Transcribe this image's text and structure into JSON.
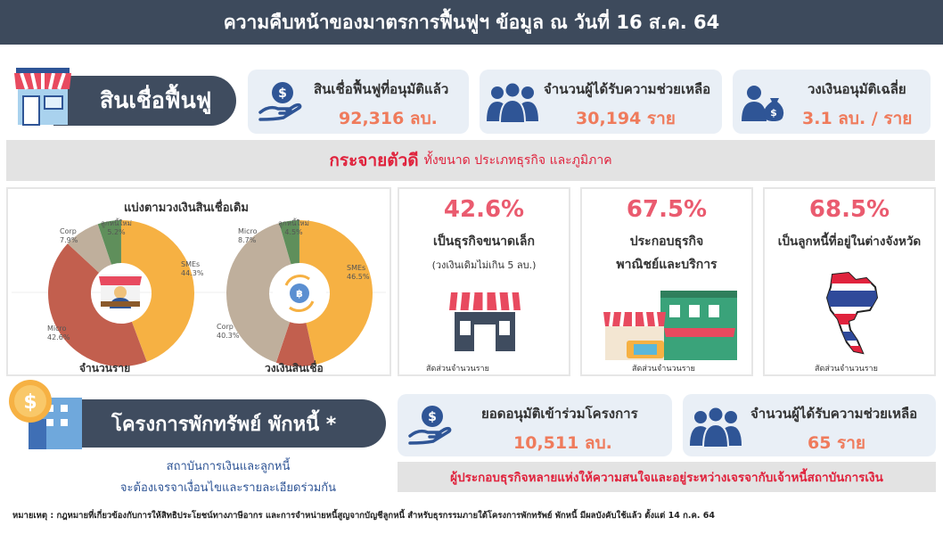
{
  "header": {
    "title": "ความคืบหน้าของมาตรการฟื้นฟูฯ ข้อมูล ณ วันที่ 16 ส.ค. 64"
  },
  "loan_section": {
    "title": "สินเชื่อฟื้นฟู",
    "stats": [
      {
        "title": "สินเชื่อฟื้นฟูที่อนุมัติแล้ว",
        "value": "92,316 ลบ.",
        "icon": "money-hand-icon"
      },
      {
        "title": "จำนวนผู้ได้รับความช่วยเหลือ",
        "value": "30,194 ราย",
        "icon": "people-icon"
      },
      {
        "title": "วงเงินอนุมัติเฉลี่ย",
        "value": "3.1 ลบ. / ราย",
        "icon": "person-money-icon"
      }
    ]
  },
  "distribution_banner": {
    "strong": "กระจายตัวดี",
    "rest": "ทั้งขนาด ประเภทธุรกิจ และภูมิภาค"
  },
  "donut_panel": {
    "title": "แบ่งตามวงเงินสินเชื่อเดิม",
    "colors": {
      "smes": "#f6b143",
      "micro": "#c25f4e",
      "corp": "#bfaf9c",
      "new": "#5f8f5b"
    },
    "count": {
      "caption": "จำนวนราย",
      "labels": {
        "smes": [
          "SMEs",
          "44.3%"
        ],
        "micro": [
          "Micro",
          "42.6%"
        ],
        "corp": [
          "Corp",
          "7.9%"
        ],
        "new": [
          "ลูกหนี้ใหม่",
          "5.2%"
        ]
      }
    },
    "amount": {
      "caption": "วงเงินสินเชื่อ",
      "labels": {
        "smes": [
          "SMEs",
          "46.5%"
        ],
        "micro": [
          "Micro",
          "8.7%"
        ],
        "corp": [
          "Corp",
          "40.3%"
        ],
        "new": [
          "ลูกหนี้ใหม่",
          "4.5%"
        ]
      }
    }
  },
  "chart_data": [
    {
      "type": "pie",
      "title": "",
      "caption": "จำนวนราย",
      "categories": [
        "SMEs",
        "Micro",
        "Corp",
        "ลูกหนี้ใหม่"
      ],
      "values": [
        44.3,
        42.6,
        7.9,
        5.2
      ]
    },
    {
      "type": "pie",
      "title": "",
      "caption": "วงเงินสินเชื่อ",
      "categories": [
        "SMEs",
        "Micro",
        "Corp",
        "ลูกหนี้ใหม่"
      ],
      "values": [
        46.5,
        8.7,
        40.3,
        4.5
      ]
    }
  ],
  "highlights": [
    {
      "pct": "42.6%",
      "line1": "เป็นธุรกิจขนาดเล็ก",
      "line2": "(วงเงินเดิมไม่เกิน 5 ลบ.)",
      "caption": "สัดส่วนจำนวนราย",
      "icon": "shop-icon"
    },
    {
      "pct": "67.5%",
      "line1": "ประกอบธุรกิจ",
      "line2": "พาณิชย์และบริการ",
      "caption": "สัดส่วนจำนวนราย",
      "icon": "storefront-icon"
    },
    {
      "pct": "68.5%",
      "line1": "เป็นลูกหนี้ที่อยู่ในต่างจังหวัด",
      "line2": "",
      "caption": "สัดส่วนจำนวนราย",
      "icon": "thailand-map-icon"
    }
  ],
  "debt_section": {
    "title": "โครงการพักทรัพย์ พักหนี้ *",
    "note_line1": "สถาบันการเงินและลูกหนี้",
    "note_line2": "จะต้องเจรจาเงื่อนไขและรายละเอียดร่วมกัน",
    "stats": [
      {
        "title": "ยอดอนุมัติเข้าร่วมโครงการ",
        "value": "10,511 ลบ.",
        "icon": "money-hand-icon"
      },
      {
        "title": "จำนวนผู้ได้รับความช่วยเหลือ",
        "value": "65 ราย",
        "icon": "people-icon"
      }
    ],
    "banner": "ผู้ประกอบธุรกิจหลายแห่งให้ความสนใจและอยู่ระหว่างเจรจากับเจ้าหนี้สถาบันการเงิน"
  },
  "footnote": "หมายเหตุ : กฎหมายที่เกี่ยวข้องกับการให้สิทธิประโยชน์ทางภาษีอากร และการจำหน่ายหนี้สูญจากบัญชีลูกหนี้ สำหรับธุรกรรมภายใต้โครงการพักทรัพย์ พักหนี้ มีผลบังคับใช้แล้ว ตั้งแต่ 14 ก.ค. 64",
  "icon_color": "#2f5596"
}
